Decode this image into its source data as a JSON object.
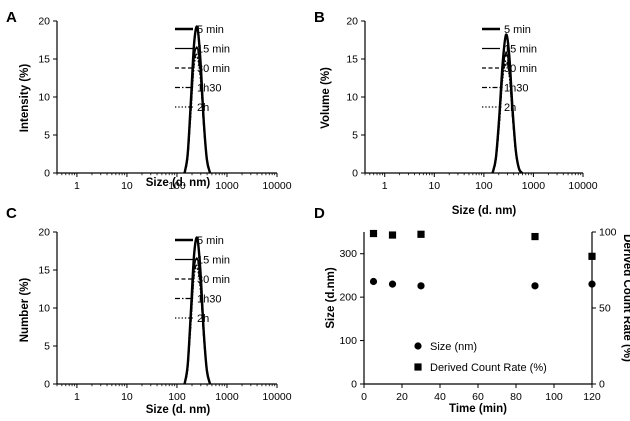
{
  "chart_data": [
    {
      "panel": "A",
      "type": "line",
      "xlabel": "Size (d. nm)",
      "ylabel": "Intensity (%)",
      "xscale": "log",
      "xlim": [
        0.4,
        10000
      ],
      "ylim": [
        0,
        20
      ],
      "xticks": [
        1,
        10,
        100,
        1000,
        10000
      ],
      "xtick_labels": [
        "1",
        "10",
        "100",
        "1000",
        "10000"
      ],
      "yticks": [
        0,
        5,
        10,
        15,
        20
      ],
      "legend_position": "top-right",
      "series": [
        {
          "name": "5 min",
          "style": "solid-thick",
          "x": [
            142,
            164,
            190,
            220,
            255,
            295,
            342,
            396,
            459
          ],
          "y": [
            0,
            2.5,
            9.5,
            17.0,
            19.2,
            14.8,
            7.0,
            1.8,
            0
          ]
        },
        {
          "name": "15 min",
          "style": "solid-thin",
          "x": [
            142,
            164,
            190,
            220,
            255,
            295,
            342,
            396,
            459
          ],
          "y": [
            0,
            2.2,
            8.5,
            15.0,
            16.5,
            13.2,
            6.5,
            1.7,
            0
          ]
        },
        {
          "name": "30 min",
          "style": "dashed",
          "x": [
            142,
            164,
            190,
            220,
            255,
            295,
            342,
            396,
            459
          ],
          "y": [
            0,
            2.4,
            8.8,
            15.2,
            16.3,
            13.0,
            6.4,
            1.7,
            0
          ]
        },
        {
          "name": "1h30",
          "style": "dash-dot",
          "x": [
            142,
            164,
            190,
            220,
            255,
            295,
            342,
            396,
            459
          ],
          "y": [
            0,
            2.0,
            8.0,
            14.3,
            15.5,
            12.5,
            6.2,
            1.6,
            0
          ]
        },
        {
          "name": "2h",
          "style": "dotted",
          "x": [
            142,
            164,
            190,
            220,
            255,
            295,
            342,
            396,
            459
          ],
          "y": [
            0,
            1.9,
            7.8,
            14.0,
            15.2,
            12.3,
            6.1,
            1.6,
            0
          ]
        }
      ]
    },
    {
      "panel": "B",
      "type": "line",
      "xlabel": "Size (d. nm)",
      "ylabel": "Volume (%)",
      "xscale": "log",
      "xlim": [
        0.4,
        10000
      ],
      "ylim": [
        0,
        20
      ],
      "xticks": [
        1,
        10,
        100,
        1000,
        10000
      ],
      "xtick_labels": [
        "1",
        "10",
        "100",
        "1000",
        "10000"
      ],
      "yticks": [
        0,
        5,
        10,
        15,
        20
      ],
      "legend_position": "top-right",
      "series": [
        {
          "name": "5 min",
          "style": "solid-thick",
          "x": [
            150,
            175,
            205,
            240,
            280,
            325,
            378,
            440,
            510,
            590
          ],
          "y": [
            0,
            2.0,
            7.5,
            14.5,
            18.2,
            15.5,
            8.5,
            3.0,
            0.6,
            0
          ]
        },
        {
          "name": "15 min",
          "style": "solid-thin",
          "x": [
            150,
            175,
            205,
            240,
            280,
            325,
            378,
            440,
            510,
            590
          ],
          "y": [
            0,
            1.8,
            6.8,
            13.2,
            15.8,
            13.8,
            7.8,
            2.8,
            0.6,
            0
          ]
        },
        {
          "name": "30 min",
          "style": "dashed",
          "x": [
            150,
            175,
            205,
            240,
            280,
            325,
            378,
            440,
            510,
            590
          ],
          "y": [
            0,
            1.9,
            7.0,
            13.3,
            15.5,
            13.5,
            7.6,
            2.7,
            0.5,
            0
          ]
        },
        {
          "name": "1h30",
          "style": "dash-dot",
          "x": [
            150,
            175,
            205,
            240,
            280,
            325,
            378,
            440,
            510,
            590
          ],
          "y": [
            0,
            1.7,
            6.4,
            12.6,
            14.8,
            13.0,
            7.4,
            2.6,
            0.5,
            0
          ]
        },
        {
          "name": "2h",
          "style": "dotted",
          "x": [
            150,
            175,
            205,
            240,
            280,
            325,
            378,
            440,
            510,
            590
          ],
          "y": [
            0,
            1.6,
            6.2,
            12.3,
            14.5,
            12.8,
            7.3,
            2.6,
            0.5,
            0
          ]
        }
      ]
    },
    {
      "panel": "C",
      "type": "line",
      "xlabel": "Size (d. nm)",
      "ylabel": "Number (%)",
      "xscale": "log",
      "xlim": [
        0.4,
        10000
      ],
      "ylim": [
        0,
        20
      ],
      "xticks": [
        1,
        10,
        100,
        1000,
        10000
      ],
      "xtick_labels": [
        "1",
        "10",
        "100",
        "1000",
        "10000"
      ],
      "yticks": [
        0,
        5,
        10,
        15,
        20
      ],
      "legend_position": "top-right",
      "series": [
        {
          "name": "5 min",
          "style": "solid-thick",
          "x": [
            142,
            164,
            190,
            220,
            255,
            295,
            342,
            396,
            459
          ],
          "y": [
            0,
            2.5,
            9.5,
            17.0,
            19.2,
            14.8,
            7.0,
            1.8,
            0
          ]
        },
        {
          "name": "15 min",
          "style": "solid-thin",
          "x": [
            142,
            164,
            190,
            220,
            255,
            295,
            342,
            396,
            459
          ],
          "y": [
            0,
            2.2,
            8.5,
            15.0,
            16.5,
            13.2,
            6.5,
            1.7,
            0
          ]
        },
        {
          "name": "30 min",
          "style": "dashed",
          "x": [
            142,
            164,
            190,
            220,
            255,
            295,
            342,
            396,
            459
          ],
          "y": [
            0,
            2.4,
            8.8,
            15.2,
            16.3,
            13.0,
            6.4,
            1.7,
            0
          ]
        },
        {
          "name": "1h30",
          "style": "dash-dot",
          "x": [
            142,
            164,
            190,
            220,
            255,
            295,
            342,
            396,
            459
          ],
          "y": [
            0,
            2.0,
            8.0,
            14.3,
            15.5,
            12.5,
            6.2,
            1.6,
            0
          ]
        },
        {
          "name": "2h",
          "style": "dotted",
          "x": [
            142,
            164,
            190,
            220,
            255,
            295,
            342,
            396,
            459
          ],
          "y": [
            0,
            1.9,
            7.8,
            14.0,
            15.2,
            12.3,
            6.1,
            1.6,
            0
          ]
        }
      ]
    },
    {
      "panel": "D",
      "type": "scatter",
      "xlabel": "Time (min)",
      "ylabel": "Size (d.nm)",
      "ylabel_right": "Derived Count Rate (%)",
      "xlim": [
        0,
        120
      ],
      "ylim": [
        0,
        350
      ],
      "ylim_right": [
        0,
        100
      ],
      "xticks": [
        0,
        20,
        40,
        60,
        80,
        100,
        120
      ],
      "yticks": [
        0,
        100,
        200,
        300
      ],
      "yticks_right": [
        0,
        50,
        100
      ],
      "legend_position": "bottom-center",
      "series": [
        {
          "name": "Size (nm)",
          "marker": "circle",
          "axis": "left",
          "x": [
            5,
            15,
            30,
            90,
            120
          ],
          "y": [
            236,
            230,
            226,
            226,
            230
          ]
        },
        {
          "name": "Derived Count Rate (%)",
          "marker": "square",
          "axis": "right",
          "x": [
            5,
            15,
            30,
            90,
            120
          ],
          "y": [
            99,
            98,
            98.5,
            97,
            84
          ]
        }
      ]
    }
  ]
}
